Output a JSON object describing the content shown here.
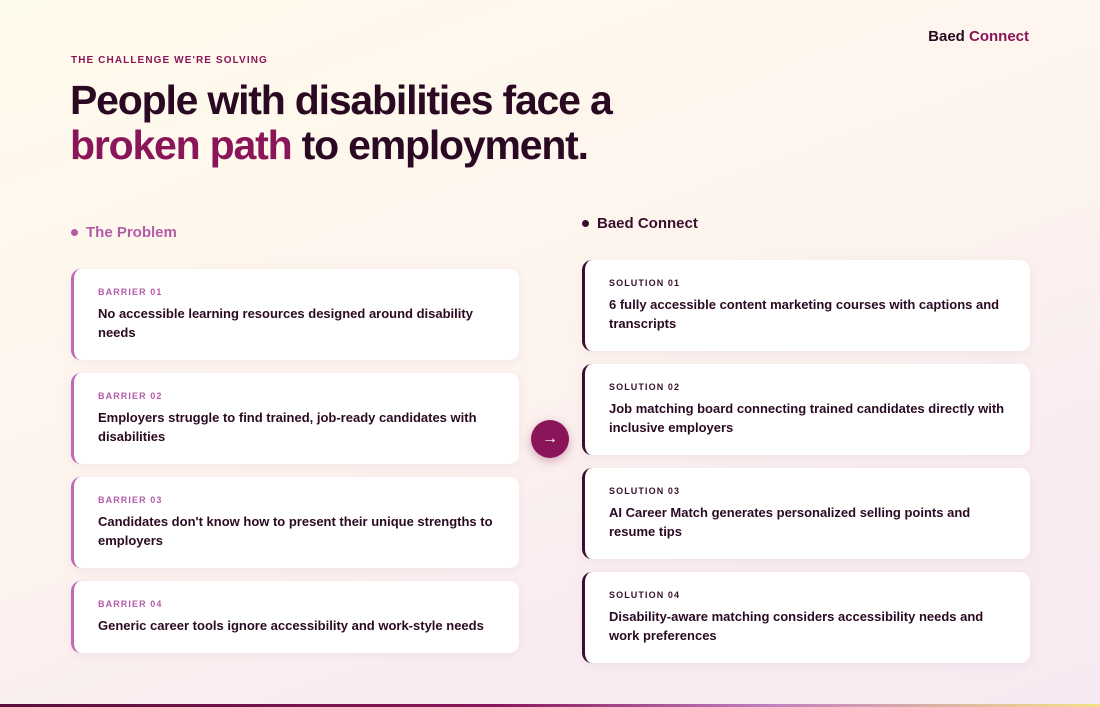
{
  "brand": {
    "part1": "Baed",
    "part2": "Connect"
  },
  "eyebrow": "THE CHALLENGE WE'RE SOLVING",
  "headline": {
    "line1": "People with disabilities face a",
    "highlight": "broken path",
    "rest": "to employment."
  },
  "problem": {
    "title": "The Problem",
    "cards": [
      {
        "tag": "BARRIER 01",
        "text": "No accessible learning resources designed around disability needs"
      },
      {
        "tag": "BARRIER 02",
        "text": "Employers struggle to find trained, job-ready candidates with disabilities"
      },
      {
        "tag": "BARRIER 03",
        "text": "Candidates don't know how to present their unique strengths to employers"
      },
      {
        "tag": "BARRIER 04",
        "text": "Generic career tools ignore accessibility and work-style needs"
      }
    ]
  },
  "solution": {
    "title": "Baed Connect",
    "cards": [
      {
        "tag": "SOLUTION 01",
        "text": "6 fully accessible content marketing courses with captions and transcripts"
      },
      {
        "tag": "SOLUTION 02",
        "text": "Job matching board connecting trained candidates directly with inclusive employers"
      },
      {
        "tag": "SOLUTION 03",
        "text": "AI Career Match generates personalized selling points and resume tips"
      },
      {
        "tag": "SOLUTION 04",
        "text": "Disability-aware matching considers accessibility needs and work preferences"
      }
    ]
  },
  "arrow": {
    "glyph": "→",
    "icon": "arrow-right-icon"
  },
  "colors": {
    "accent": "#8a1659",
    "dark": "#2a0a22",
    "problem": "#b45ba8"
  }
}
